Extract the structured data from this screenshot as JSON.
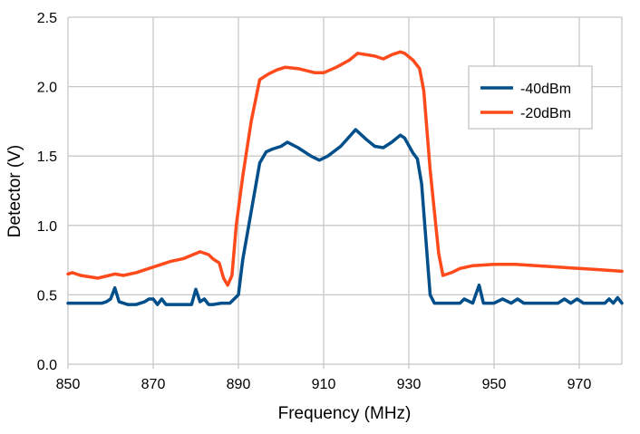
{
  "chart_data": {
    "type": "line",
    "title": "",
    "xlabel": "Frequency (MHz)",
    "ylabel": "Detector (V)",
    "xlim": [
      850,
      980
    ],
    "ylim": [
      0,
      2.5
    ],
    "xticks": [
      850,
      870,
      890,
      910,
      930,
      950,
      970
    ],
    "xtick_labels": [
      "850",
      "870",
      "890",
      "910",
      "930",
      "950",
      "970"
    ],
    "yticks": [
      0,
      0.5,
      1.0,
      1.5,
      2.0,
      2.5
    ],
    "ytick_labels": [
      "0.0",
      "0.5",
      "1.0",
      "1.5",
      "2.0",
      "2.5"
    ],
    "grid": true,
    "legend_position": "top-right",
    "series": [
      {
        "name": "-40dBm",
        "color": "#004f8a",
        "x": [
          850,
          852,
          855,
          858,
          859,
          860,
          861,
          862,
          864,
          866,
          868,
          869,
          870,
          871,
          872,
          873,
          875,
          878,
          879,
          880,
          881,
          882,
          883,
          884,
          886,
          888,
          890,
          891,
          893,
          895,
          896.5,
          898,
          900,
          901.5,
          904,
          907,
          909,
          911,
          914,
          917.5,
          920,
          922,
          924,
          926,
          928,
          929,
          931,
          932,
          933,
          934,
          935,
          936,
          942,
          943,
          945,
          946.5,
          947.5,
          950,
          952,
          954,
          955.5,
          957,
          965,
          966.5,
          968,
          969.5,
          971,
          976,
          977,
          978,
          979,
          980
        ],
        "values": [
          0.44,
          0.44,
          0.44,
          0.44,
          0.45,
          0.47,
          0.55,
          0.45,
          0.43,
          0.43,
          0.45,
          0.47,
          0.47,
          0.43,
          0.47,
          0.43,
          0.43,
          0.43,
          0.43,
          0.54,
          0.45,
          0.47,
          0.43,
          0.43,
          0.44,
          0.44,
          0.5,
          0.75,
          1.1,
          1.45,
          1.53,
          1.55,
          1.57,
          1.6,
          1.56,
          1.5,
          1.47,
          1.5,
          1.57,
          1.69,
          1.62,
          1.57,
          1.56,
          1.6,
          1.65,
          1.63,
          1.52,
          1.48,
          1.3,
          0.9,
          0.5,
          0.44,
          0.44,
          0.47,
          0.44,
          0.57,
          0.44,
          0.44,
          0.47,
          0.44,
          0.47,
          0.44,
          0.44,
          0.47,
          0.44,
          0.47,
          0.44,
          0.44,
          0.47,
          0.44,
          0.48,
          0.44
        ]
      },
      {
        "name": "-20dBm",
        "color": "#ff4a1c",
        "x": [
          850,
          851,
          853,
          857,
          861,
          863,
          866,
          869,
          872,
          874,
          877,
          881,
          883,
          884,
          885.5,
          886.5,
          887.5,
          888.5,
          889.5,
          891,
          893,
          895,
          897,
          899,
          901,
          904,
          908,
          910,
          913,
          916,
          918,
          922,
          924,
          926,
          928,
          929,
          931,
          932.5,
          933.5,
          935,
          937,
          938,
          940,
          942,
          945,
          950,
          955,
          960,
          965,
          970,
          975,
          980
        ],
        "values": [
          0.65,
          0.66,
          0.64,
          0.62,
          0.65,
          0.64,
          0.66,
          0.69,
          0.72,
          0.74,
          0.76,
          0.81,
          0.79,
          0.76,
          0.73,
          0.62,
          0.57,
          0.64,
          1.0,
          1.35,
          1.75,
          2.05,
          2.09,
          2.12,
          2.14,
          2.13,
          2.1,
          2.1,
          2.14,
          2.19,
          2.24,
          2.22,
          2.2,
          2.23,
          2.25,
          2.24,
          2.19,
          2.13,
          1.97,
          1.4,
          0.8,
          0.64,
          0.66,
          0.69,
          0.71,
          0.72,
          0.72,
          0.71,
          0.7,
          0.69,
          0.68,
          0.67
        ]
      }
    ]
  }
}
